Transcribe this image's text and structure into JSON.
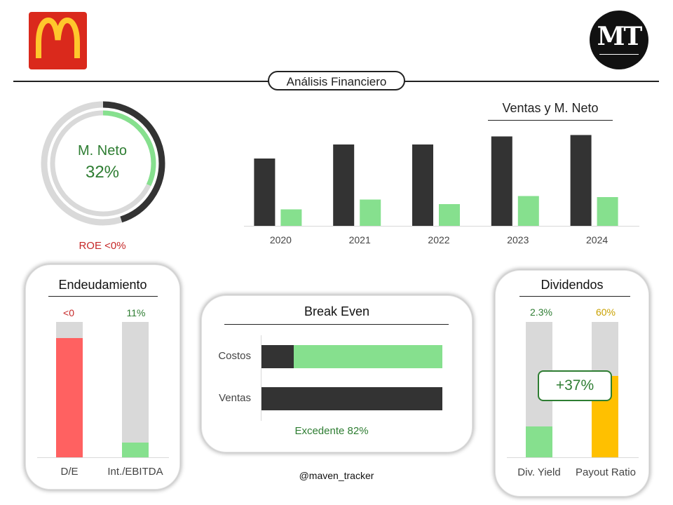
{
  "header": {
    "title": "Análisis Financiero",
    "mt_logo_text": "MT",
    "mc_logo_colors": {
      "background": "#da291c",
      "arches": "#ffc72c"
    }
  },
  "margin_donut": {
    "label": "M. Neto",
    "value_text": "32%",
    "value": 0.32,
    "outer_value": 0.45,
    "roe_text": "ROE <0%",
    "colors": {
      "inner": "#86e08e",
      "outer": "#333333",
      "track": "#d9d9d9"
    }
  },
  "chart_data": {
    "type": "bar",
    "title": "Ventas y M. Neto",
    "categories": [
      "2020",
      "2021",
      "2022",
      "2023",
      "2024"
    ],
    "series": [
      {
        "values": [
          19.2,
          23.2,
          23.2,
          25.5,
          25.9
        ],
        "color": "#333333"
      },
      {
        "values": [
          4.7,
          7.5,
          6.2,
          8.5,
          8.2
        ],
        "color": "#86e08e"
      }
    ],
    "ylim": [
      0,
      28
    ],
    "grid": false,
    "legend": "none"
  },
  "endeudamiento": {
    "title": "Endeudamiento",
    "bars": [
      {
        "label": "D/E",
        "value_text": "<0",
        "fill": 0.88,
        "color": "#ff6161",
        "value_color": "#c62828"
      },
      {
        "label": "Int./EBITDA",
        "value_text": "11%",
        "fill": 0.11,
        "color": "#86e08e",
        "value_color": "#2e7d32"
      }
    ]
  },
  "break_even": {
    "title": "Break Even",
    "rows": [
      {
        "label": "Costos",
        "dark_fraction": 0.18
      },
      {
        "label": "Ventas",
        "dark_fraction": 1.0
      }
    ],
    "surplus_text": "Excedente 82%",
    "colors": {
      "dark": "#333333",
      "green": "#86e08e",
      "text": "#2e7d32"
    }
  },
  "dividendos": {
    "title": "Dividendos",
    "bars": [
      {
        "label": "Div. Yield",
        "value_text": "2.3%",
        "fill": 0.23,
        "color": "#86e08e",
        "value_color": "#2e7d32"
      },
      {
        "label": "Payout Ratio",
        "value_text": "60%",
        "fill": 0.6,
        "color": "#ffc000",
        "value_color": "#c9a100"
      }
    ],
    "badge_text": "+37%"
  },
  "footer": {
    "handle": "@maven_tracker"
  }
}
